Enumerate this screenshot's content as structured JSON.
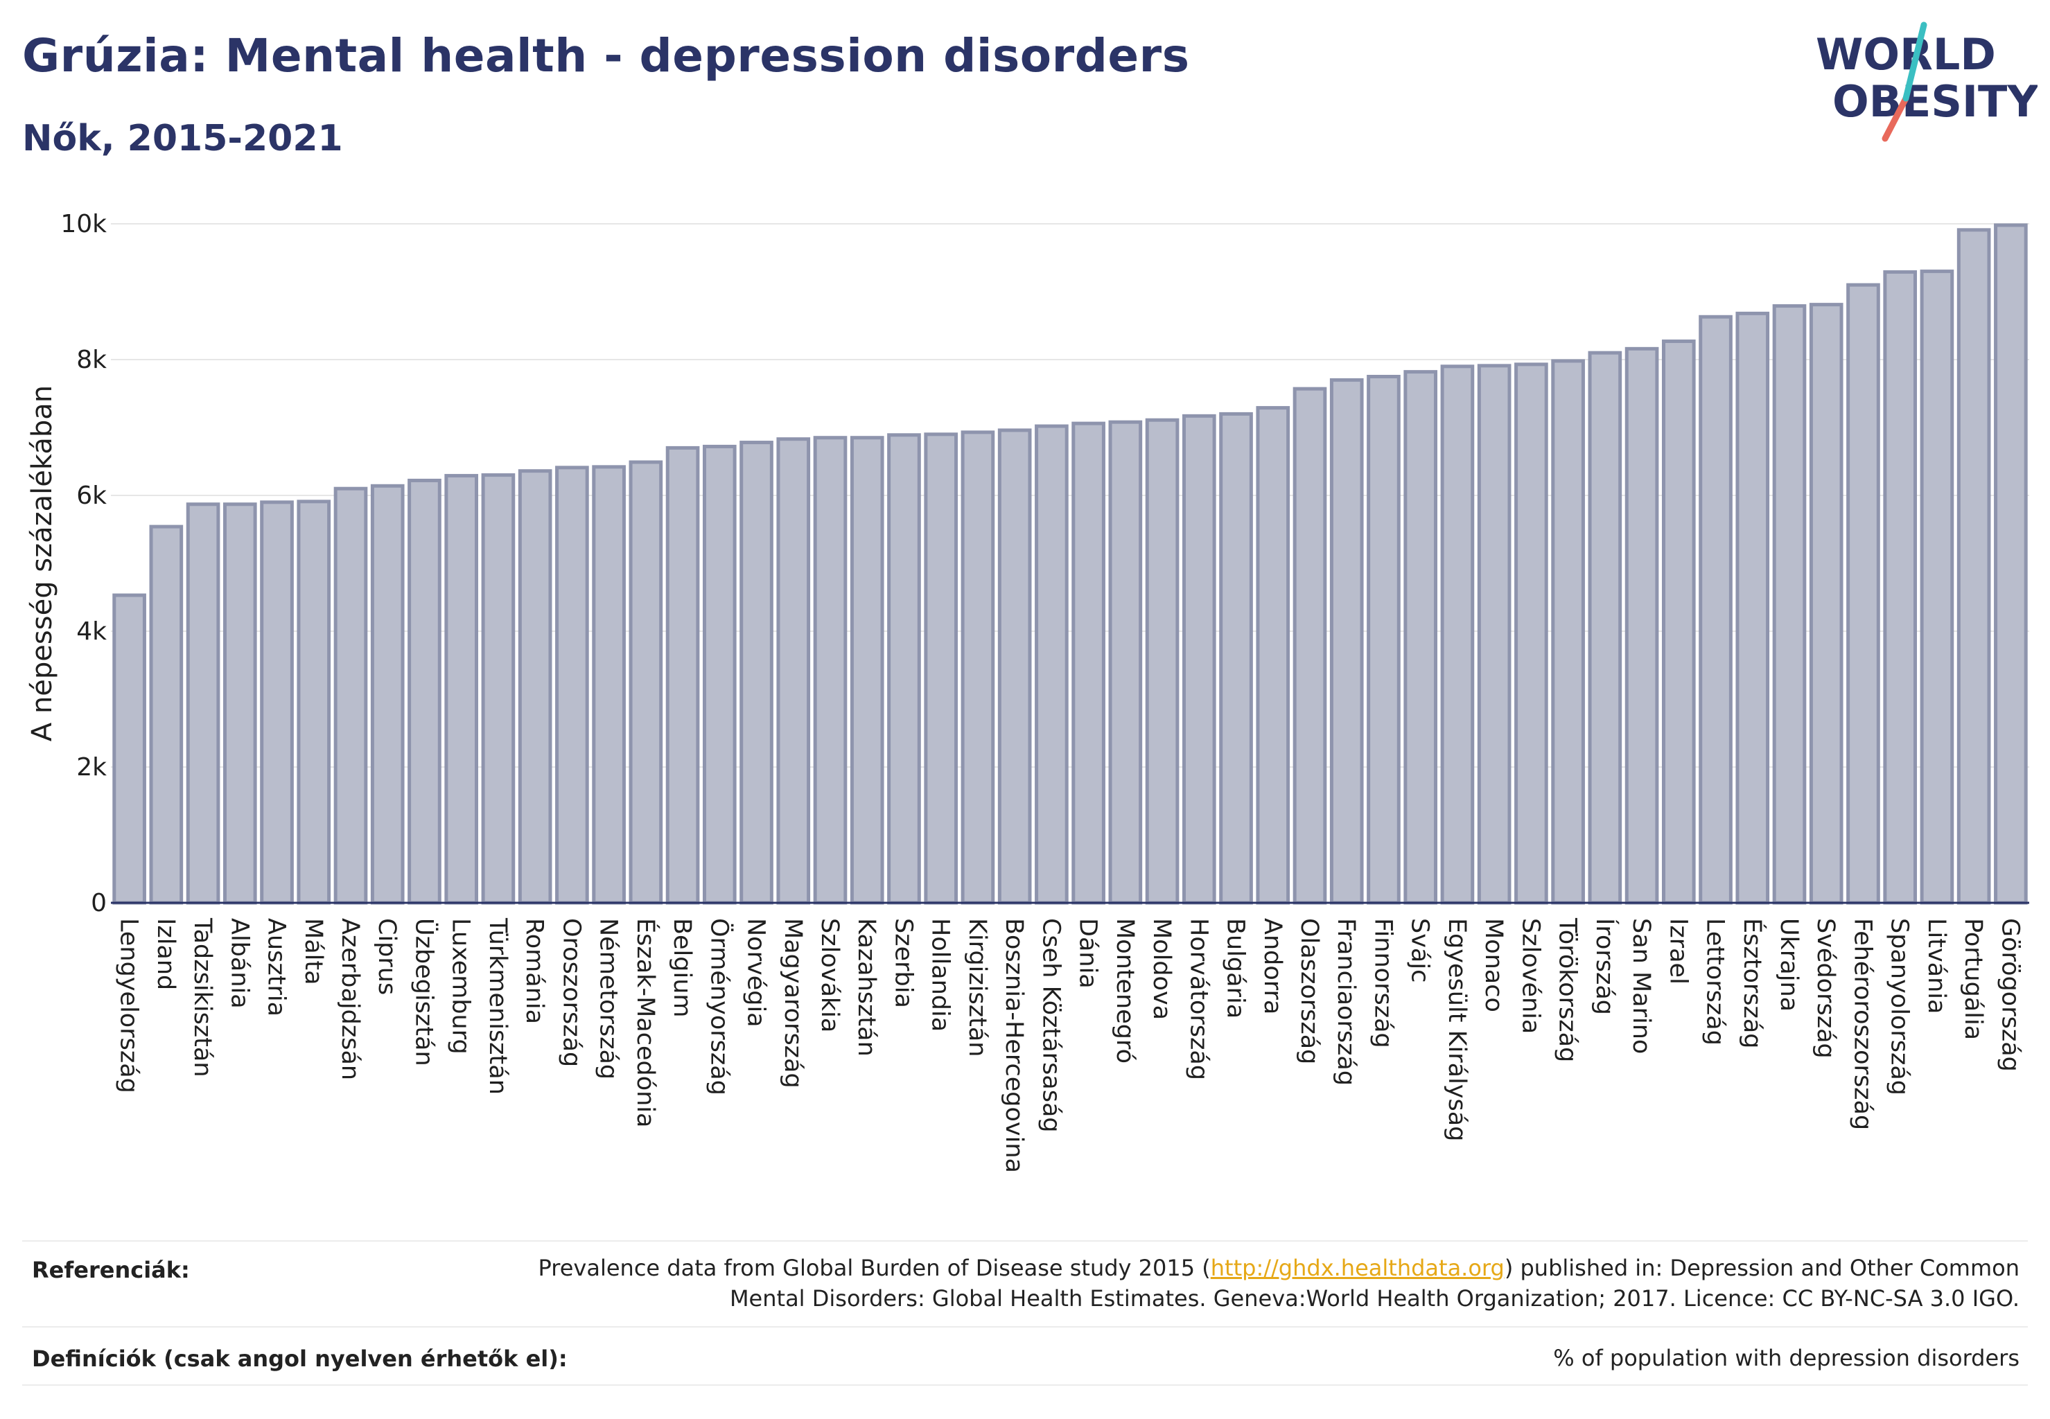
{
  "header": {
    "title": "Grúzia: Mental health - depression disorders",
    "subtitle": "Nők, 2015-2021"
  },
  "logo": {
    "line1": "WORLD",
    "line2": "OBESITY"
  },
  "chart_data": {
    "type": "bar",
    "ylabel": "A népesség százalékában",
    "ylim": [
      0,
      10000
    ],
    "yticks": [
      {
        "value": 0,
        "label": "0"
      },
      {
        "value": 2000,
        "label": "2k"
      },
      {
        "value": 4000,
        "label": "4k"
      },
      {
        "value": 6000,
        "label": "6k"
      },
      {
        "value": 8000,
        "label": "8k"
      },
      {
        "value": 10000,
        "label": "10k"
      }
    ],
    "grid": true,
    "bar_color": "#b9bdcc",
    "bar_edge_color": "#8e94ad",
    "categories": [
      "Lengyelország",
      "Izland",
      "Tadzsikisztán",
      "Albánia",
      "Ausztria",
      "Málta",
      "Azerbajdzsán",
      "Ciprus",
      "Üzbegisztán",
      "Luxemburg",
      "Türkmenisztán",
      "Románia",
      "Oroszország",
      "Németország",
      "Észak-Macedónia",
      "Belgium",
      "Örményország",
      "Norvégia",
      "Magyarország",
      "Szlovákia",
      "Kazahsztán",
      "Szerbia",
      "Hollandia",
      "Kirgizisztán",
      "Bosznia-Hercegovina",
      "Cseh Köztársaság",
      "Dánia",
      "Montenegró",
      "Moldova",
      "Horvátország",
      "Bulgária",
      "Andorra",
      "Olaszország",
      "Franciaország",
      "Finnország",
      "Svájc",
      "Egyesült Királyság",
      "Monaco",
      "Szlovénia",
      "Törökország",
      "Írország",
      "San Marino",
      "Izrael",
      "Lettország",
      "Észtország",
      "Ukrajna",
      "Svédország",
      "Fehéroroszország",
      "Spanyolország",
      "Litvánia",
      "Portugália",
      "Görögország"
    ],
    "values": [
      4530,
      5540,
      5870,
      5870,
      5900,
      5910,
      6100,
      6140,
      6220,
      6290,
      6300,
      6360,
      6410,
      6420,
      6490,
      6700,
      6720,
      6780,
      6830,
      6850,
      6850,
      6890,
      6900,
      6930,
      6960,
      7020,
      7060,
      7080,
      7110,
      7170,
      7200,
      7290,
      7570,
      7700,
      7750,
      7820,
      7900,
      7910,
      7930,
      7980,
      8100,
      8160,
      8270,
      8630,
      8680,
      8790,
      8810,
      9100,
      9290,
      9300,
      9910,
      9980
    ]
  },
  "footer": {
    "references_label": "Referenciák:",
    "references_text_1": "Prevalence data from Global Burden of Disease study 2015 (",
    "references_link": "http://ghdx.healthdata.org",
    "references_text_2": ") published in: Depression and Other Common",
    "references_text_3": "Mental Disorders: Global Health Estimates. Geneva:World Health Organization; 2017. Licence: CC BY-NC-SA 3.0 IGO.",
    "definitions_label": "Definíciók (csak angol nyelven érhetők el):",
    "definitions_text": "% of population with depression disorders"
  }
}
